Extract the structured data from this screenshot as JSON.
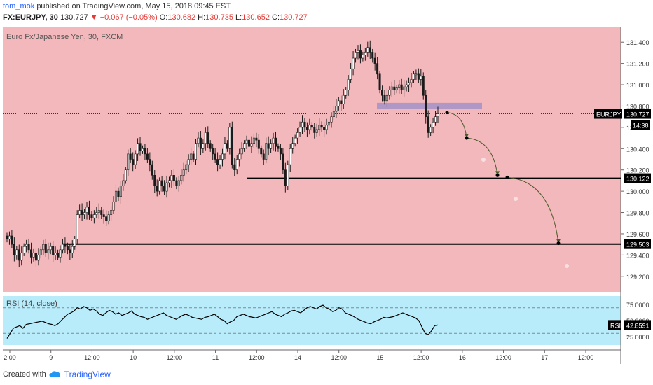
{
  "header": {
    "author": "tom_mok",
    "published_text": "published on TradingView.com, May 15, 2018 09:45 EST",
    "symbol": "FX:EURJPY, 30",
    "last": "130.727",
    "change": "▼ −0.067 (−0.05%)",
    "o_label": "O:",
    "o": "130.682",
    "h_label": "H:",
    "h": "130.735",
    "l_label": "L:",
    "l": "130.652",
    "c_label": "C:",
    "c": "130.727"
  },
  "footer": {
    "created_with": "Created with",
    "brand": "TradingView"
  },
  "colors": {
    "price_bg": "#f2b8bb",
    "rsi_bg": "#b9ecfb",
    "candle": "#1a1a1a",
    "zone": "#a592c8",
    "arrow": "#4a5a2a"
  },
  "chart_data": {
    "type": "candlestick",
    "title": "Euro Fx/Japanese Yen, 30, FXCM",
    "price_axis": {
      "ylim": [
        129.1,
        131.5
      ],
      "ticks": [
        "131.400",
        "131.200",
        "131.000",
        "130.800",
        "130.600",
        "130.400",
        "130.200",
        "130.000",
        "129.800",
        "129.600",
        "129.400",
        "129.200"
      ]
    },
    "time_axis": {
      "labels": [
        "2:00",
        "9",
        "12:00",
        "10",
        "12:00",
        "11",
        "12:00",
        "14",
        "12:00",
        "15",
        "12:00",
        "16",
        "12:00",
        "17",
        "12:00"
      ]
    },
    "last_price_badge": {
      "symbol": "EURJPY",
      "price": "130.727",
      "countdown": "14:38"
    },
    "horizontal_levels": [
      {
        "price": 130.122,
        "label": "130.122"
      },
      {
        "price": 129.503,
        "label": "129.503"
      }
    ],
    "resistance_zone": {
      "price_low": 130.77,
      "price_high": 130.83
    },
    "projected_path": [
      {
        "price": 130.74,
        "label": ""
      },
      {
        "price": 130.5,
        "label": ""
      },
      {
        "price": 130.15,
        "label": ""
      },
      {
        "price": 130.13,
        "label": ""
      },
      {
        "price": 129.51,
        "label": ""
      }
    ],
    "close_path": [
      [
        129.55,
        129.58,
        129.5,
        129.4,
        129.45,
        129.35,
        129.42,
        129.48,
        129.5,
        129.45,
        129.38,
        129.42,
        129.35,
        129.4,
        129.45,
        129.5,
        129.42,
        129.45,
        129.48,
        129.4,
        129.42,
        129.38,
        129.45,
        129.5,
        129.48,
        129.45,
        129.42,
        129.48
      ],
      [
        129.55,
        129.78,
        129.82,
        129.78,
        129.8,
        129.85,
        129.78,
        129.75,
        129.78,
        129.8,
        129.82,
        129.78,
        129.76,
        129.72,
        129.78,
        129.82,
        129.9,
        130.0,
        129.95,
        130.05,
        130.1,
        130.2,
        130.35,
        130.3,
        130.25,
        130.35,
        130.45,
        130.38,
        130.4,
        130.35,
        130.3,
        130.25,
        130.15,
        130.05,
        130.0,
        130.1,
        130.05,
        130.0,
        130.08,
        130.1,
        130.15,
        130.1,
        130.05,
        130.1,
        130.15,
        130.2,
        130.25,
        130.3,
        130.35,
        130.3,
        130.45,
        130.5,
        130.4,
        130.45,
        130.55,
        130.45,
        130.4,
        130.35,
        130.3,
        130.25,
        130.3,
        130.35,
        130.45,
        130.4,
        130.6,
        130.25,
        130.2,
        130.3,
        130.35,
        130.4,
        130.45,
        130.48,
        130.42,
        130.45,
        130.5,
        130.48,
        130.4,
        130.35,
        130.3,
        130.45,
        130.4,
        130.45,
        130.5,
        130.42,
        130.4,
        130.35,
        130.2,
        130.05,
        130.25,
        130.4,
        130.45,
        130.5,
        130.55,
        130.6,
        130.65,
        130.6,
        130.58,
        130.62,
        130.6,
        130.55,
        130.58,
        130.62,
        130.6,
        130.58,
        130.62,
        130.65,
        130.7,
        130.75,
        130.8,
        130.85,
        130.82,
        130.9,
        130.95,
        131.05,
        131.15,
        131.25,
        131.3,
        131.32,
        131.25,
        131.28,
        131.3,
        131.35,
        131.3,
        131.25,
        131.2,
        131.1,
        130.95,
        130.9,
        130.85,
        130.9,
        130.95,
        130.98,
        130.95,
        130.97,
        131.0,
        130.95,
        130.98,
        131.0,
        131.02,
        131.05,
        131.1,
        131.1,
        131.05,
        131.08,
        130.9,
        130.7,
        130.55,
        130.6,
        130.65,
        130.7,
        130.727
      ]
    ],
    "rsi": {
      "label": "RSI (14, close)",
      "badge_label": "RSI",
      "value": "42.8591",
      "ylim": [
        15,
        85
      ],
      "levels": [
        70,
        30
      ],
      "ticks": [
        "75.0000",
        "50.0000",
        "25.0000"
      ],
      "values": [
        22,
        30,
        38,
        40,
        42,
        38,
        44,
        45,
        46,
        47,
        48,
        49,
        47,
        45,
        44,
        42,
        45,
        50,
        55,
        60,
        62,
        65,
        70,
        68,
        72,
        70,
        66,
        68,
        65,
        60,
        58,
        62,
        66,
        64,
        60,
        62,
        58,
        60,
        62,
        65,
        60,
        58,
        56,
        55,
        52,
        54,
        56,
        58,
        60,
        62,
        58,
        56,
        54,
        52,
        55,
        58,
        60,
        58,
        55,
        54,
        53,
        52,
        55,
        56,
        58,
        60,
        56,
        52,
        50,
        45,
        48,
        50,
        56,
        58,
        60,
        58,
        56,
        55,
        54,
        56,
        58,
        60,
        62,
        64,
        60,
        58,
        56,
        60,
        62,
        65,
        66,
        64,
        62,
        66,
        70,
        72,
        70,
        68,
        72,
        74,
        70,
        68,
        64,
        66,
        70,
        68,
        62,
        60,
        58,
        55,
        52,
        50,
        48,
        46,
        45,
        48,
        50,
        52,
        55,
        54,
        55,
        56,
        58,
        60,
        62,
        60,
        58,
        56,
        54,
        50,
        40,
        30,
        28,
        34,
        42,
        43
      ]
    }
  }
}
